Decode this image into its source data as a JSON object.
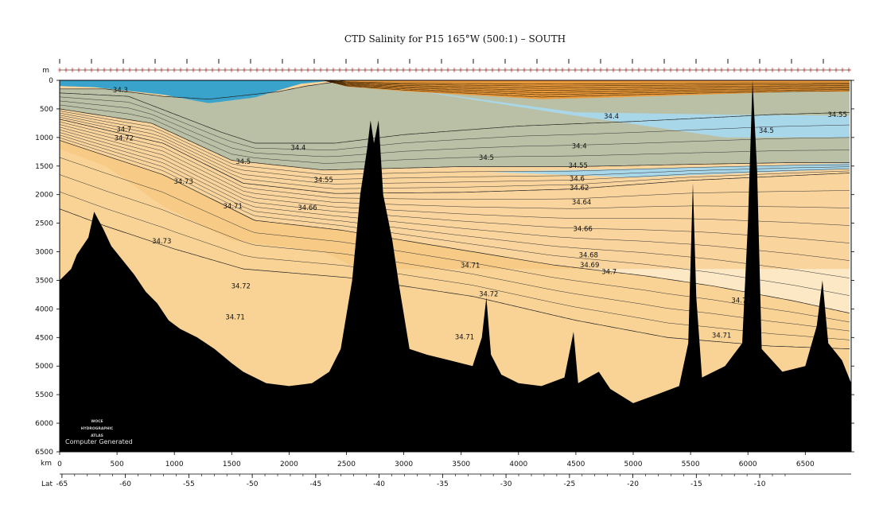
{
  "chart_data": {
    "type": "heatmap",
    "title": "CTD Salinity for P15 165°W (500:1) – SOUTH",
    "x_unit_label": "km",
    "y_unit_label": "m",
    "lat_label": "Lat",
    "xlim": [
      0,
      6900
    ],
    "ylim": [
      0,
      6500
    ],
    "x_ticks": [
      0,
      500,
      1000,
      1500,
      2000,
      2500,
      3000,
      3500,
      4000,
      4500,
      5000,
      5500,
      6000,
      6500
    ],
    "y_ticks": [
      0,
      500,
      1000,
      1500,
      2000,
      2500,
      3000,
      3500,
      4000,
      4500,
      5000,
      5500,
      6000,
      6500
    ],
    "lat_ticks": [
      {
        "label": "-65",
        "lat": -65
      },
      {
        "label": "-60",
        "lat": -60
      },
      {
        "label": "-55",
        "lat": -55
      },
      {
        "label": "-50",
        "lat": -50
      },
      {
        "label": "-45",
        "lat": -45
      },
      {
        "label": "-40",
        "lat": -40
      },
      {
        "label": "-35",
        "lat": -35
      },
      {
        "label": "-30",
        "lat": -30
      },
      {
        "label": "-25",
        "lat": -25
      },
      {
        "label": "-20",
        "lat": -20
      },
      {
        "label": "-15",
        "lat": -15
      },
      {
        "label": "-10",
        "lat": -10
      }
    ],
    "colors": {
      "fresh_dark": "#3aa3cc",
      "fresh_mid": "#72bcd9",
      "fresh_light": "#a9d7ea",
      "deep_light": "#fce8c5",
      "deep_mid": "#f9d396",
      "deep_warm": "#f6c27a",
      "upper_salty": "#e99a3c",
      "bathymetry": "#000000"
    },
    "contour_labels": [
      {
        "text": "34.3",
        "km": 530,
        "depth": 210
      },
      {
        "text": "34.4",
        "km": 2080,
        "depth": 1220
      },
      {
        "text": "34.4",
        "km": 4530,
        "depth": 1190
      },
      {
        "text": "34.4",
        "km": 4810,
        "depth": 670
      },
      {
        "text": "34.5",
        "km": 1600,
        "depth": 1460
      },
      {
        "text": "34.5",
        "km": 3720,
        "depth": 1390
      },
      {
        "text": "34.5",
        "km": 6160,
        "depth": 920
      },
      {
        "text": "34.55",
        "km": 2300,
        "depth": 1780
      },
      {
        "text": "34.55",
        "km": 4520,
        "depth": 1530
      },
      {
        "text": "34.55",
        "km": 6780,
        "depth": 640
      },
      {
        "text": "34.6",
        "km": 4510,
        "depth": 1760
      },
      {
        "text": "34.62",
        "km": 4530,
        "depth": 1920
      },
      {
        "text": "34.64",
        "km": 4550,
        "depth": 2170
      },
      {
        "text": "34.66",
        "km": 2160,
        "depth": 2270
      },
      {
        "text": "34.66",
        "km": 4560,
        "depth": 2640
      },
      {
        "text": "34.68",
        "km": 4610,
        "depth": 3100
      },
      {
        "text": "34.69",
        "km": 4620,
        "depth": 3270
      },
      {
        "text": "34.7",
        "km": 560,
        "depth": 900
      },
      {
        "text": "34.7",
        "km": 4790,
        "depth": 3390
      },
      {
        "text": "34.72",
        "km": 560,
        "depth": 1050
      },
      {
        "text": "34.72",
        "km": 1580,
        "depth": 3640
      },
      {
        "text": "34.72",
        "km": 3740,
        "depth": 3780
      },
      {
        "text": "34.73",
        "km": 1080,
        "depth": 1810
      },
      {
        "text": "34.73",
        "km": 890,
        "depth": 2850
      },
      {
        "text": "34.71",
        "km": 1510,
        "depth": 2240
      },
      {
        "text": "34.71",
        "km": 1530,
        "depth": 4180
      },
      {
        "text": "34.71",
        "km": 3580,
        "depth": 3280
      },
      {
        "text": "34.71",
        "km": 3530,
        "depth": 4530
      },
      {
        "text": "34.71",
        "km": 5770,
        "depth": 4500
      },
      {
        "text": "34.71",
        "km": 5940,
        "depth": 3890
      }
    ],
    "grid": false,
    "legend": "none"
  },
  "watermark": {
    "logo_lines": [
      "WOCE",
      "HYDROGRAPHIC",
      "ATLAS"
    ],
    "credit": "Computer Generated"
  }
}
